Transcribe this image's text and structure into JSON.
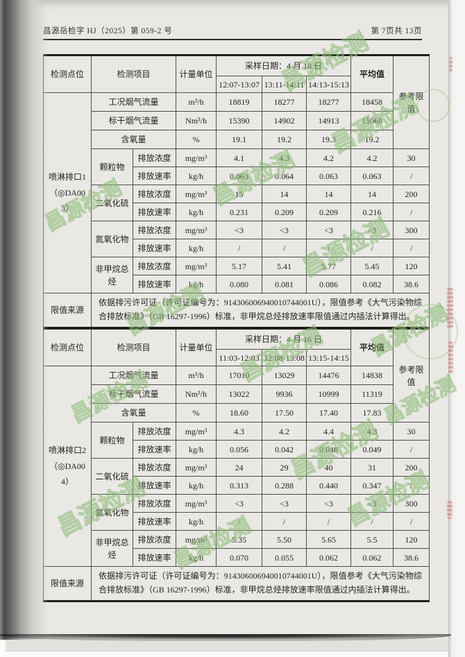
{
  "page_header": {
    "left": "昌源岳检字 HJ（2025）第 059-2 号",
    "right": "第 7页共 13页"
  },
  "watermark": {
    "text": "昌源检测"
  },
  "colors": {
    "paper": "#e9e8e4",
    "watermark_green": "#9cc489",
    "stamp_red": "#c4636c",
    "ink": "#24221e"
  },
  "tables": [
    {
      "point_label": "喷淋排口1（◎DA003）",
      "header": {
        "col_point": "检测点位",
        "col_item": "检测项目",
        "col_unit": "计量单位",
        "sample_date": "采样日期：4 月 18 日",
        "times": [
          "12:07-13:07",
          "13:11-14:11",
          "14:13-15:13"
        ],
        "col_avg": "平均值",
        "col_ref": "参考限值"
      },
      "flow_rows": [
        {
          "item": "工况烟气流量",
          "unit": "m³/h",
          "values": [
            "18819",
            "18277",
            "18277"
          ],
          "avg": "18458"
        },
        {
          "item": "标干烟气流量",
          "unit": "Nm³/h",
          "values": [
            "15390",
            "14902",
            "14913"
          ],
          "avg": "15068"
        },
        {
          "item": "含氧量",
          "unit": "%",
          "values": [
            "19.1",
            "19.2",
            "19.3"
          ],
          "avg": "19.2"
        }
      ],
      "pollutants": [
        {
          "name": "颗粒物",
          "rows": [
            {
              "sub": "排放浓度",
              "unit": "mg/m³",
              "values": [
                "4.1",
                "4.3",
                "4.2"
              ],
              "avg": "4.2",
              "limit": "30"
            },
            {
              "sub": "排放速率",
              "unit": "kg/h",
              "values": [
                "0.063",
                "0.064",
                "0.063"
              ],
              "avg": "0.063",
              "limit": "/"
            }
          ]
        },
        {
          "name": "二氧化硫",
          "rows": [
            {
              "sub": "排放浓度",
              "unit": "mg/m³",
              "values": [
                "15",
                "14",
                "14"
              ],
              "avg": "14",
              "limit": "200"
            },
            {
              "sub": "排放速率",
              "unit": "kg/h",
              "values": [
                "0.231",
                "0.209",
                "0.209"
              ],
              "avg": "0.216",
              "limit": "/"
            }
          ]
        },
        {
          "name": "氮氧化物",
          "rows": [
            {
              "sub": "排放浓度",
              "unit": "mg/m³",
              "values": [
                "<3",
                "<3",
                "<3"
              ],
              "avg": "<3",
              "limit": "300"
            },
            {
              "sub": "排放速率",
              "unit": "kg/h",
              "values": [
                "/",
                "/",
                "/"
              ],
              "avg": "/",
              "limit": "/"
            }
          ]
        },
        {
          "name": "非甲烷总烃",
          "rows": [
            {
              "sub": "排放浓度",
              "unit": "mg/m³",
              "values": [
                "5.17",
                "5.41",
                "5.77"
              ],
              "avg": "5.45",
              "limit": "120"
            },
            {
              "sub": "排放速率",
              "unit": "kg/h",
              "values": [
                "0.080",
                "0.081",
                "0.086"
              ],
              "avg": "0.082",
              "limit": "38.6"
            }
          ]
        }
      ],
      "limit_label": "限值来源",
      "limit_text": "依据排污许可证（许可证编号为：914306006940010744001U），限值参考《大气污染物综合排放标准》（GB 16297-1996）标准，非甲烷总烃排放速率限值通过内插法计算得出。"
    },
    {
      "point_label": "喷淋排口2（◎DA004）",
      "header": {
        "col_point": "检测点位",
        "col_item": "检测项目",
        "col_unit": "计量单位",
        "sample_date": "采样日期：4 月 16 日",
        "times": [
          "11:03-12:03",
          "12:08-13:08",
          "13:15-14:15"
        ],
        "col_avg": "平均值",
        "col_ref": "参考限值"
      },
      "flow_rows": [
        {
          "item": "工况烟气流量",
          "unit": "m³/h",
          "values": [
            "17010",
            "13029",
            "14476"
          ],
          "avg": "14838"
        },
        {
          "item": "标干烟气流量",
          "unit": "Nm³/h",
          "values": [
            "13022",
            "9936",
            "10999"
          ],
          "avg": "11319"
        },
        {
          "item": "含氧量",
          "unit": "%",
          "values": [
            "18.60",
            "17.50",
            "17.40"
          ],
          "avg": "17.83"
        }
      ],
      "pollutants": [
        {
          "name": "颗粒物",
          "rows": [
            {
              "sub": "排放浓度",
              "unit": "mg/m³",
              "values": [
                "4.3",
                "4.2",
                "4.4"
              ],
              "avg": "4.3",
              "limit": "30"
            },
            {
              "sub": "排放速率",
              "unit": "kg/h",
              "values": [
                "0.056",
                "0.042",
                "0.048"
              ],
              "avg": "0.049",
              "limit": "/"
            }
          ]
        },
        {
          "name": "二氧化硫",
          "rows": [
            {
              "sub": "排放浓度",
              "unit": "mg/m³",
              "values": [
                "24",
                "29",
                "40"
              ],
              "avg": "31",
              "limit": "200"
            },
            {
              "sub": "排放速率",
              "unit": "kg/h",
              "values": [
                "0.313",
                "0.288",
                "0.440"
              ],
              "avg": "0.347",
              "limit": "/"
            }
          ]
        },
        {
          "name": "氮氧化物",
          "rows": [
            {
              "sub": "排放浓度",
              "unit": "mg/m³",
              "values": [
                "<3",
                "<3",
                "<3"
              ],
              "avg": "<3",
              "limit": "300"
            },
            {
              "sub": "排放速率",
              "unit": "kg/h",
              "values": [
                "/",
                "/",
                "/"
              ],
              "avg": "/",
              "limit": "/"
            }
          ]
        },
        {
          "name": "非甲烷总烃",
          "rows": [
            {
              "sub": "排放浓度",
              "unit": "mg/m³",
              "values": [
                "5.35",
                "5.50",
                "5.65"
              ],
              "avg": "5.5",
              "limit": "120"
            },
            {
              "sub": "排放速率",
              "unit": "kg/h",
              "values": [
                "0.070",
                "0.055",
                "0.062"
              ],
              "avg": "0.062",
              "limit": "38.6"
            }
          ]
        }
      ],
      "limit_label": "限值来源",
      "limit_text": "依据排污许可证（许可证编号为：914306006940010744001U），限值参考《大气污染物综合排放标准》（GB 16297-1996）标准，非甲烷总烃排放速率限值通过内插法计算得出。"
    }
  ]
}
